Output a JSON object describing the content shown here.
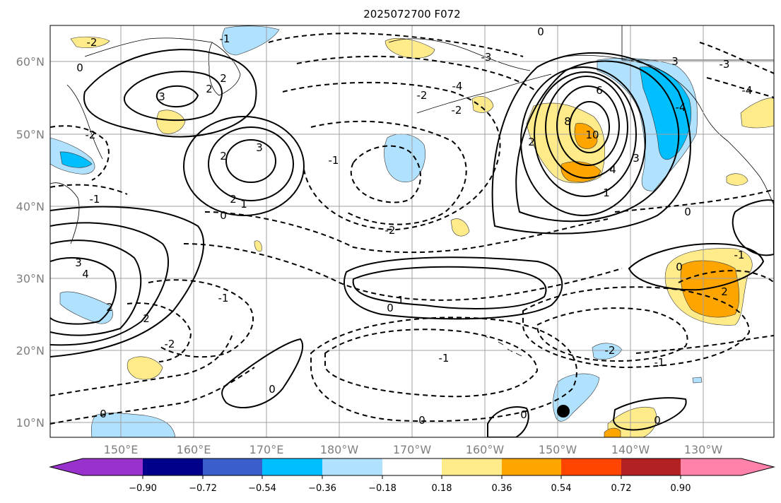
{
  "title": "2025072700 F072",
  "axes": {
    "lon_labels": [
      "150°E",
      "160°E",
      "170°E",
      "180°W",
      "170°W",
      "160°W",
      "150°W",
      "140°W",
      "130°W"
    ],
    "lat_labels": [
      "60°N",
      "50°N",
      "40°N",
      "30°N",
      "20°N",
      "10°N"
    ]
  },
  "colorbar": {
    "ticks": [
      "−0.90",
      "−0.72",
      "−0.54",
      "−0.36",
      "−0.18",
      "0.18",
      "0.36",
      "0.54",
      "0.72",
      "0.90"
    ],
    "colors": [
      "#9932cc",
      "#00008b",
      "#3a5fcd",
      "#00bfff",
      "#b0e2ff",
      "#ffffff",
      "#ffeb8a",
      "#ffa500",
      "#ff4500",
      "#b22222",
      "#ff82ab"
    ]
  },
  "contour_labels": [
    {
      "text": "0"
    },
    {
      "text": "2"
    },
    {
      "text": "3"
    },
    {
      "text": "2"
    },
    {
      "text": "0"
    },
    {
      "text": "-2"
    },
    {
      "text": "-1"
    },
    {
      "text": "3"
    },
    {
      "text": "4"
    },
    {
      "text": "2"
    },
    {
      "text": "3"
    },
    {
      "text": "2"
    },
    {
      "text": "0"
    },
    {
      "text": "1"
    },
    {
      "text": "-2"
    },
    {
      "text": "-1"
    },
    {
      "text": "2"
    },
    {
      "text": "1"
    },
    {
      "text": "0"
    },
    {
      "text": "-2"
    },
    {
      "text": "-1"
    },
    {
      "text": "6"
    },
    {
      "text": "8"
    },
    {
      "text": "10"
    },
    {
      "text": "4"
    },
    {
      "text": "3"
    },
    {
      "text": "-3"
    },
    {
      "text": "-4"
    },
    {
      "text": "-3"
    },
    {
      "text": "0"
    },
    {
      "text": "-1"
    },
    {
      "text": "2"
    },
    {
      "text": "0"
    },
    {
      "text": "-2"
    },
    {
      "text": "-1"
    },
    {
      "text": "0"
    },
    {
      "text": "0"
    },
    {
      "text": "0"
    },
    {
      "text": "0"
    },
    {
      "text": "-1"
    },
    {
      "text": "1"
    },
    {
      "text": "-4"
    },
    {
      "text": "-2"
    },
    {
      "text": "-2"
    },
    {
      "text": "-4"
    },
    {
      "text": "3"
    },
    {
      "text": "2"
    },
    {
      "text": "-2"
    },
    {
      "text": "-1"
    },
    {
      "text": "0"
    },
    {
      "text": "2"
    }
  ],
  "marker": {
    "name": "black-dot"
  }
}
